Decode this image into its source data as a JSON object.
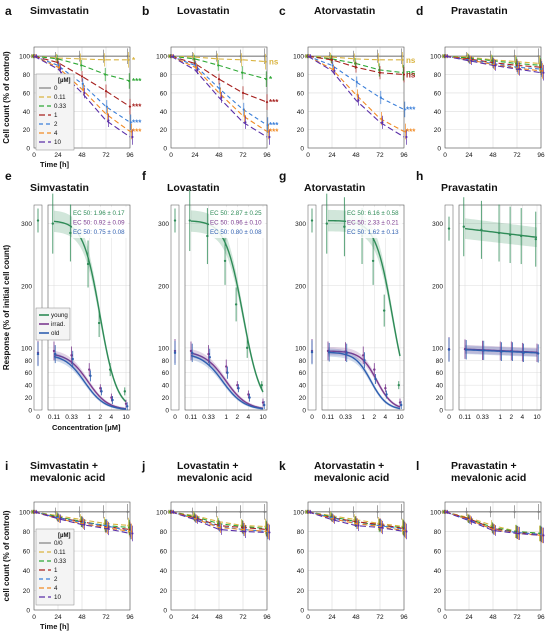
{
  "figure": {
    "colors": {
      "c0": "#7f7f7f",
      "c011": "#d9b440",
      "c033": "#2ea836",
      "c1": "#a6201e",
      "c2": "#3b7fd9",
      "c4": "#f08a24",
      "c10": "#5a2fa8",
      "young": "#2e8b57",
      "irrad": "#7b3b8f",
      "old": "#2f5fb0",
      "grid": "#dcdcdc",
      "frame": "#555555"
    },
    "time_axis_label": "Time [h]",
    "conc_axis_label": "Concentration [µM]",
    "time_ylabel": "Cell count (% of control)",
    "resp_ylabel": "Response (% of initial cell count)",
    "mev_ylabel": "cell count (% of control)",
    "legend_unit": "[µM]",
    "legend_doses": [
      "0",
      "0.11",
      "0.33",
      "1",
      "2",
      "4",
      "10"
    ],
    "legend_doses_mev": [
      "0/0",
      "0.11",
      "0.33",
      "1",
      "2",
      "4",
      "10"
    ],
    "legend_ages": [
      "young",
      "irrad.",
      "old"
    ]
  },
  "chart_data": [
    {
      "panel": "a",
      "title": "Simvastatin",
      "type": "line",
      "x": [
        0,
        24,
        48,
        72,
        96
      ],
      "xlabel": "Time [h]",
      "ylabel": "Cell count (% of control)",
      "ylim": [
        0,
        110
      ],
      "series": [
        {
          "name": "0",
          "values": [
            100,
            100,
            100,
            100,
            100
          ]
        },
        {
          "name": "0.11",
          "values": [
            100,
            98,
            97,
            96,
            96
          ]
        },
        {
          "name": "0.33",
          "values": [
            100,
            97,
            90,
            80,
            73
          ]
        },
        {
          "name": "1",
          "values": [
            100,
            93,
            78,
            62,
            45
          ]
        },
        {
          "name": "2",
          "values": [
            100,
            90,
            70,
            45,
            28
          ]
        },
        {
          "name": "4",
          "values": [
            100,
            88,
            64,
            37,
            18
          ]
        },
        {
          "name": "10",
          "values": [
            100,
            86,
            60,
            30,
            12
          ]
        }
      ],
      "annotations": [
        "*",
        "***",
        "***",
        "***",
        "***"
      ]
    },
    {
      "panel": "b",
      "title": "Lovastatin",
      "type": "line",
      "x": [
        0,
        24,
        48,
        72,
        96
      ],
      "ylim": [
        0,
        110
      ],
      "series": [
        {
          "name": "0",
          "values": [
            100,
            100,
            100,
            100,
            100
          ]
        },
        {
          "name": "0.11",
          "values": [
            100,
            99,
            97,
            96,
            94
          ]
        },
        {
          "name": "0.33",
          "values": [
            100,
            97,
            90,
            82,
            75
          ]
        },
        {
          "name": "1",
          "values": [
            100,
            92,
            75,
            60,
            50
          ]
        },
        {
          "name": "2",
          "values": [
            100,
            90,
            65,
            42,
            25
          ]
        },
        {
          "name": "4",
          "values": [
            100,
            88,
            60,
            35,
            18
          ]
        },
        {
          "name": "10",
          "values": [
            100,
            85,
            55,
            28,
            12
          ]
        }
      ],
      "annotations": [
        "ns",
        "*",
        "***",
        "***",
        "***"
      ]
    },
    {
      "panel": "c",
      "title": "Atorvastatin",
      "type": "line",
      "x": [
        0,
        24,
        48,
        72,
        96
      ],
      "ylim": [
        0,
        110
      ],
      "series": [
        {
          "name": "0",
          "values": [
            100,
            100,
            100,
            100,
            100
          ]
        },
        {
          "name": "0.11",
          "values": [
            100,
            99,
            97,
            96,
            96
          ]
        },
        {
          "name": "0.33",
          "values": [
            100,
            97,
            92,
            85,
            82
          ]
        },
        {
          "name": "1",
          "values": [
            100,
            96,
            88,
            82,
            80
          ]
        },
        {
          "name": "2",
          "values": [
            100,
            90,
            72,
            55,
            42
          ]
        },
        {
          "name": "4",
          "values": [
            100,
            86,
            58,
            32,
            18
          ]
        },
        {
          "name": "10",
          "values": [
            100,
            84,
            52,
            28,
            12
          ]
        }
      ],
      "annotations": [
        "ns",
        "ns",
        "ns",
        "***",
        "***"
      ]
    },
    {
      "panel": "d",
      "title": "Pravastatin",
      "type": "line",
      "x": [
        0,
        24,
        48,
        72,
        96
      ],
      "ylim": [
        0,
        110
      ],
      "series": [
        {
          "name": "0",
          "values": [
            100,
            100,
            100,
            100,
            100
          ]
        },
        {
          "name": "0.11",
          "values": [
            100,
            99,
            96,
            94,
            92
          ]
        },
        {
          "name": "0.33",
          "values": [
            100,
            98,
            95,
            92,
            90
          ]
        },
        {
          "name": "1",
          "values": [
            100,
            97,
            93,
            90,
            88
          ]
        },
        {
          "name": "2",
          "values": [
            100,
            96,
            92,
            88,
            86
          ]
        },
        {
          "name": "4",
          "values": [
            100,
            96,
            91,
            87,
            84
          ]
        },
        {
          "name": "10",
          "values": [
            100,
            95,
            90,
            86,
            82
          ]
        }
      ]
    },
    {
      "panel": "e",
      "title": "Simvastatin",
      "type": "line",
      "x_ticks": [
        "0",
        "0.11",
        "0.33",
        "1",
        "2",
        "4",
        "10"
      ],
      "xlabel": "Concentration [µM]",
      "ylabel": "Response (% of initial cell count)",
      "ylim": [
        0,
        330
      ],
      "ec50": [
        "EC 50:  1.96 ± 0.17",
        "EC 50:  0.92 ± 0.09",
        "EC 50:  0.75 ± 0.08"
      ],
      "series": [
        {
          "name": "young",
          "top": 305,
          "ec50": 1.96,
          "hill": 1.9,
          "points": [
            300,
            285,
            235,
            140,
            65,
            30
          ]
        },
        {
          "name": "irrad.",
          "top": 92,
          "ec50": 0.92,
          "hill": 1.6,
          "points": [
            95,
            88,
            65,
            35,
            20,
            10
          ]
        },
        {
          "name": "old",
          "top": 90,
          "ec50": 0.75,
          "hill": 1.6,
          "points": [
            90,
            82,
            55,
            30,
            16,
            6
          ]
        }
      ]
    },
    {
      "panel": "f",
      "title": "Lovastatin",
      "type": "line",
      "x_ticks": [
        "0",
        "0.11",
        "0.33",
        "1",
        "2",
        "4",
        "10"
      ],
      "ylim": [
        0,
        330
      ],
      "ec50": [
        "EC 50:  2.87 ± 0.25",
        "EC 50:  0.96 ± 0.10",
        "EC 50:  0.80 ± 0.08"
      ],
      "series": [
        {
          "name": "young",
          "top": 305,
          "ec50": 2.87,
          "hill": 1.8,
          "points": [
            305,
            280,
            240,
            170,
            100,
            40
          ]
        },
        {
          "name": "irrad.",
          "top": 95,
          "ec50": 0.96,
          "hill": 1.5,
          "points": [
            95,
            90,
            70,
            40,
            25,
            12
          ]
        },
        {
          "name": "old",
          "top": 92,
          "ec50": 0.8,
          "hill": 1.5,
          "points": [
            92,
            85,
            60,
            35,
            20,
            8
          ]
        }
      ]
    },
    {
      "panel": "g",
      "title": "Atorvastatin",
      "type": "line",
      "x_ticks": [
        "0",
        "0.11",
        "0.33",
        "1",
        "2",
        "4",
        "10"
      ],
      "ylim": [
        0,
        330
      ],
      "ec50": [
        "EC 50:  6.16 ± 0.58",
        "EC 50:  2.33 ± 0.21",
        "EC 50:  1.62 ± 0.13"
      ],
      "series": [
        {
          "name": "young",
          "top": 305,
          "ec50": 6.16,
          "hill": 1.9,
          "points": [
            300,
            295,
            280,
            240,
            160,
            40
          ]
        },
        {
          "name": "irrad.",
          "top": 95,
          "ec50": 2.33,
          "hill": 2.0,
          "points": [
            95,
            94,
            88,
            65,
            35,
            12
          ]
        },
        {
          "name": "old",
          "top": 93,
          "ec50": 1.62,
          "hill": 2.0,
          "points": [
            93,
            92,
            80,
            50,
            25,
            8
          ]
        }
      ]
    },
    {
      "panel": "h",
      "title": "Pravastatin",
      "type": "line",
      "x_ticks": [
        "0",
        "0.11",
        "0.33",
        "1",
        "2",
        "4",
        "10"
      ],
      "ylim": [
        0,
        330
      ],
      "series": [
        {
          "name": "young",
          "start": 292,
          "end": 278,
          "points": [
            295,
            290,
            285,
            282,
            280,
            275
          ]
        },
        {
          "name": "irrad.",
          "start": 98,
          "end": 93,
          "points": [
            98,
            96,
            95,
            95,
            93,
            92
          ]
        },
        {
          "name": "old",
          "start": 97,
          "end": 92,
          "points": [
            97,
            96,
            94,
            94,
            92,
            91
          ]
        }
      ]
    },
    {
      "panel": "i",
      "title": "Simvastatin +\nmevalonic acid",
      "type": "line",
      "x": [
        0,
        24,
        48,
        72,
        96
      ],
      "xlabel": "Time [h]",
      "ylabel": "cell count (% of control)",
      "ylim": [
        0,
        110
      ],
      "series": [
        {
          "name": "0/0",
          "values": [
            100,
            100,
            100,
            100,
            100
          ]
        },
        {
          "name": "0.11",
          "values": [
            100,
            96,
            92,
            88,
            86
          ]
        },
        {
          "name": "0.33",
          "values": [
            100,
            95,
            90,
            86,
            84
          ]
        },
        {
          "name": "1",
          "values": [
            100,
            94,
            90,
            85,
            82
          ]
        },
        {
          "name": "2",
          "values": [
            100,
            94,
            89,
            86,
            80
          ]
        },
        {
          "name": "4",
          "values": [
            100,
            93,
            88,
            84,
            80
          ]
        },
        {
          "name": "10",
          "values": [
            100,
            93,
            87,
            83,
            78
          ]
        }
      ]
    },
    {
      "panel": "j",
      "title": "Lovastatin +\nmevalonic acid",
      "type": "line",
      "x": [
        0,
        24,
        48,
        72,
        96
      ],
      "ylim": [
        0,
        110
      ],
      "series": [
        {
          "name": "0/0",
          "values": [
            100,
            100,
            100,
            100,
            100
          ]
        },
        {
          "name": "0.11",
          "values": [
            100,
            96,
            90,
            86,
            85
          ]
        },
        {
          "name": "0.33",
          "values": [
            100,
            95,
            88,
            85,
            83
          ]
        },
        {
          "name": "1",
          "values": [
            100,
            94,
            86,
            84,
            82
          ]
        },
        {
          "name": "2",
          "values": [
            100,
            93,
            85,
            82,
            80
          ]
        },
        {
          "name": "4",
          "values": [
            100,
            93,
            84,
            82,
            80
          ]
        },
        {
          "name": "10",
          "values": [
            100,
            92,
            82,
            80,
            79
          ]
        }
      ]
    },
    {
      "panel": "k",
      "title": "Atorvastatin +\nmevalonic acid",
      "type": "line",
      "x": [
        0,
        24,
        48,
        72,
        96
      ],
      "ylim": [
        0,
        110
      ],
      "series": [
        {
          "name": "0/0",
          "values": [
            100,
            100,
            100,
            100,
            100
          ]
        },
        {
          "name": "0.11",
          "values": [
            100,
            96,
            92,
            88,
            85
          ]
        },
        {
          "name": "0.33",
          "values": [
            100,
            95,
            90,
            86,
            84
          ]
        },
        {
          "name": "1",
          "values": [
            100,
            94,
            90,
            87,
            83
          ]
        },
        {
          "name": "2",
          "values": [
            100,
            94,
            88,
            86,
            82
          ]
        },
        {
          "name": "4",
          "values": [
            100,
            93,
            88,
            85,
            81
          ]
        },
        {
          "name": "10",
          "values": [
            100,
            92,
            86,
            84,
            80
          ]
        }
      ]
    },
    {
      "panel": "l",
      "title": "Pravastatin +\nmevalonic acid",
      "type": "line",
      "x": [
        0,
        24,
        48,
        72,
        96
      ],
      "ylim": [
        0,
        110
      ],
      "series": [
        {
          "name": "0/0",
          "values": [
            100,
            100,
            100,
            100,
            100
          ]
        },
        {
          "name": "0.11",
          "values": [
            100,
            94,
            86,
            80,
            78
          ]
        },
        {
          "name": "0.33",
          "values": [
            100,
            93,
            84,
            80,
            78
          ]
        },
        {
          "name": "1",
          "values": [
            100,
            93,
            83,
            79,
            77
          ]
        },
        {
          "name": "2",
          "values": [
            100,
            92,
            82,
            79,
            77
          ]
        },
        {
          "name": "4",
          "values": [
            100,
            92,
            82,
            78,
            76
          ]
        },
        {
          "name": "10",
          "values": [
            100,
            91,
            81,
            78,
            76
          ]
        }
      ]
    }
  ]
}
